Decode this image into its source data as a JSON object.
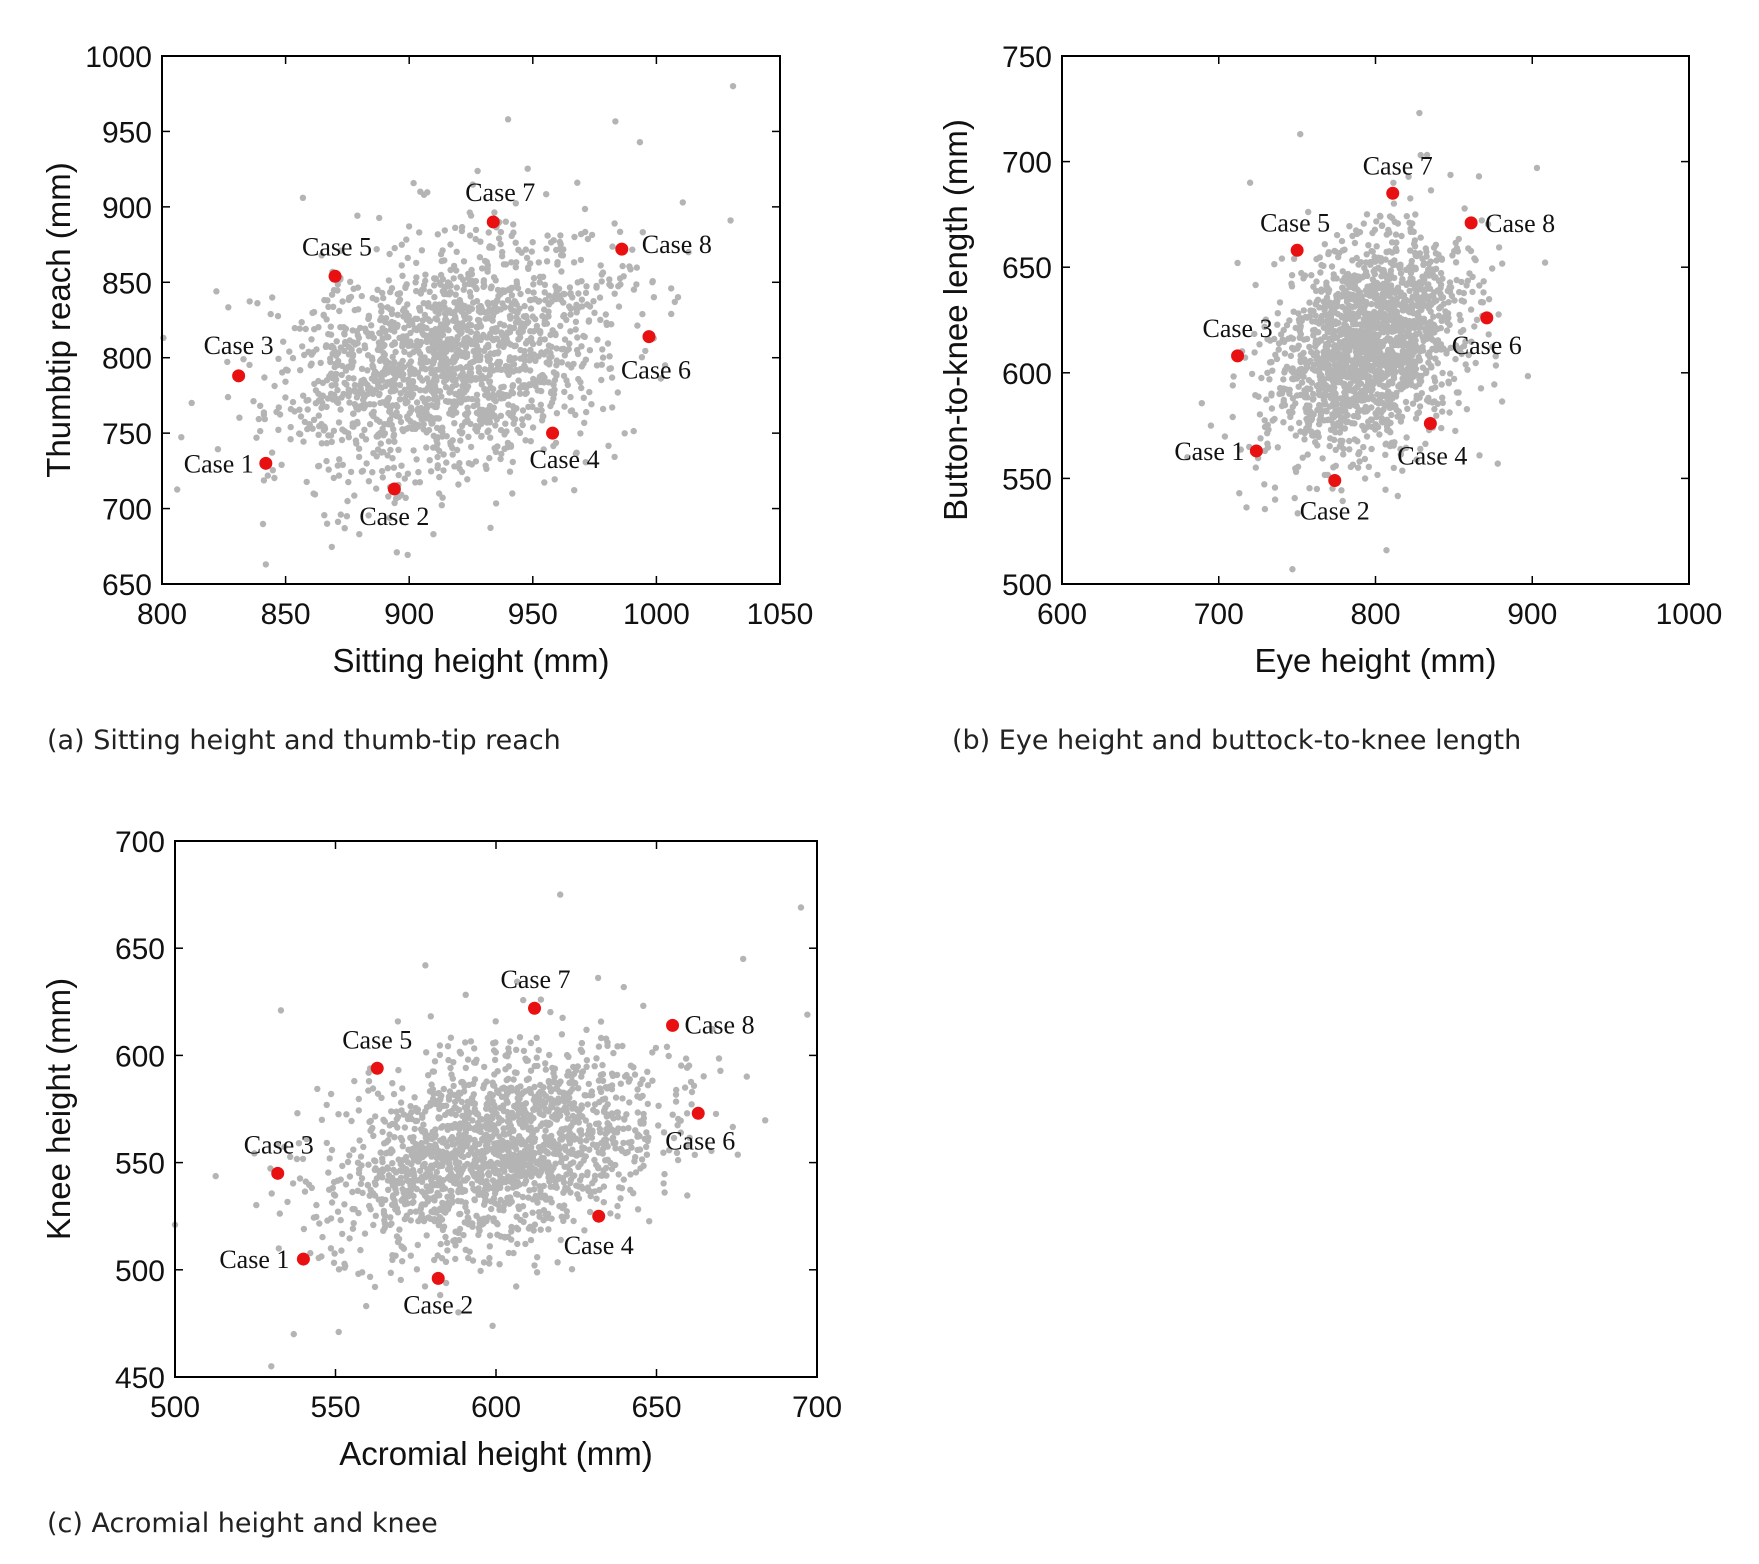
{
  "colors": {
    "background_points": "#b4b4b4",
    "case_points": "#e81010",
    "axes": "#000000"
  },
  "chart_data": [
    {
      "type": "scatter",
      "caption": "(a) Sitting height and thumb-tip reach",
      "xlabel": "Sitting height (mm)",
      "ylabel": "Thumbtip reach (mm)",
      "xlim": [
        800,
        1050
      ],
      "ylim": [
        650,
        1000
      ],
      "xticks": [
        800,
        850,
        900,
        950,
        1000,
        1050
      ],
      "yticks": [
        650,
        700,
        750,
        800,
        850,
        900,
        950,
        1000
      ],
      "population": {
        "count": 1800,
        "mean": [
          915,
          800
        ],
        "sd": [
          33,
          40
        ],
        "corr": 0.3,
        "seed": 11
      },
      "outliers": [
        [
          1031,
          980
        ],
        [
          940,
          958
        ],
        [
          842,
          663
        ],
        [
          895,
          671
        ],
        [
          906,
          908
        ],
        [
          857,
          906
        ],
        [
          822,
          844
        ],
        [
          812,
          770
        ],
        [
          968,
          916
        ],
        [
          1013,
          870
        ],
        [
          1030,
          891
        ],
        [
          1006,
          829
        ]
      ],
      "cases": [
        {
          "label": "Case 1",
          "x": 842,
          "y": 730,
          "anchor": "left",
          "dx": -12,
          "dy": 9
        },
        {
          "label": "Case 2",
          "x": 894,
          "y": 713,
          "anchor": "middle",
          "dx": 0,
          "dy": 36
        },
        {
          "label": "Case 3",
          "x": 831,
          "y": 788,
          "anchor": "middle",
          "dx": 0,
          "dy": -22
        },
        {
          "label": "Case 4",
          "x": 958,
          "y": 750,
          "anchor": "middle",
          "dx": 12,
          "dy": 35
        },
        {
          "label": "Case 5",
          "x": 870,
          "y": 854,
          "anchor": "middle",
          "dx": 2,
          "dy": -21
        },
        {
          "label": "Case 6",
          "x": 997,
          "y": 814,
          "anchor": "middle",
          "dx": 7,
          "dy": 42
        },
        {
          "label": "Case 7",
          "x": 934,
          "y": 890,
          "anchor": "middle",
          "dx": 7,
          "dy": -21
        },
        {
          "label": "Case 8",
          "x": 986,
          "y": 872,
          "anchor": "right",
          "dx": 20,
          "dy": 4
        }
      ]
    },
    {
      "type": "scatter",
      "caption": "(b) Eye height and buttock-to-knee length",
      "xlabel": "Eye height (mm)",
      "ylabel": "Button-to-knee length (mm)",
      "xlim": [
        600,
        1000
      ],
      "ylim": [
        500,
        750
      ],
      "xticks": [
        600,
        700,
        800,
        900,
        1000
      ],
      "yticks": [
        500,
        550,
        600,
        650,
        700,
        750
      ],
      "population": {
        "count": 1800,
        "mean": [
          795,
          612
        ],
        "sd": [
          30,
          26
        ],
        "corr": 0.3,
        "seed": 23
      },
      "outliers": [
        [
          828,
          723
        ],
        [
          752,
          713
        ],
        [
          903,
          697
        ],
        [
          866,
          693
        ],
        [
          720,
          690
        ],
        [
          712,
          652
        ],
        [
          747,
          507
        ],
        [
          807,
          516
        ],
        [
          680,
          560
        ],
        [
          695,
          575
        ],
        [
          878,
          557
        ]
      ],
      "cases": [
        {
          "label": "Case 1",
          "x": 724,
          "y": 563,
          "anchor": "left",
          "dx": -12,
          "dy": 9
        },
        {
          "label": "Case 2",
          "x": 774,
          "y": 549,
          "anchor": "middle",
          "dx": 0,
          "dy": 39
        },
        {
          "label": "Case 3",
          "x": 712,
          "y": 608,
          "anchor": "middle",
          "dx": 0,
          "dy": -19
        },
        {
          "label": "Case 4",
          "x": 835,
          "y": 576,
          "anchor": "middle",
          "dx": 2,
          "dy": 41
        },
        {
          "label": "Case 5",
          "x": 750,
          "y": 658,
          "anchor": "middle",
          "dx": -2,
          "dy": -19
        },
        {
          "label": "Case 6",
          "x": 871,
          "y": 626,
          "anchor": "middle",
          "dx": 0,
          "dy": 36
        },
        {
          "label": "Case 7",
          "x": 811,
          "y": 685,
          "anchor": "middle",
          "dx": 5,
          "dy": -19
        },
        {
          "label": "Case 8",
          "x": 861,
          "y": 671,
          "anchor": "right",
          "dx": 14,
          "dy": 9
        }
      ]
    },
    {
      "type": "scatter",
      "caption": "(c) Acromial height and knee",
      "xlabel": "Acromial height (mm)",
      "ylabel": "Knee height (mm)",
      "xlim": [
        500,
        700
      ],
      "ylim": [
        450,
        700
      ],
      "xticks": [
        500,
        550,
        600,
        650,
        700
      ],
      "yticks": [
        450,
        500,
        550,
        600,
        650,
        700
      ],
      "population": {
        "count": 1800,
        "mean": [
          600,
          556
        ],
        "sd": [
          26,
          24
        ],
        "corr": 0.35,
        "seed": 37
      },
      "outliers": [
        [
          620,
          675
        ],
        [
          695,
          669
        ],
        [
          677,
          645
        ],
        [
          697,
          619
        ],
        [
          530,
          455
        ],
        [
          537,
          470
        ],
        [
          551,
          471
        ],
        [
          500,
          521
        ],
        [
          533,
          621
        ],
        [
          578,
          642
        ]
      ],
      "cases": [
        {
          "label": "Case 1",
          "x": 540,
          "y": 505,
          "anchor": "left",
          "dx": -14,
          "dy": 9
        },
        {
          "label": "Case 2",
          "x": 582,
          "y": 496,
          "anchor": "middle",
          "dx": 0,
          "dy": 35
        },
        {
          "label": "Case 3",
          "x": 532,
          "y": 545,
          "anchor": "middle",
          "dx": 1,
          "dy": -20
        },
        {
          "label": "Case 4",
          "x": 632,
          "y": 525,
          "anchor": "middle",
          "dx": 0,
          "dy": 38
        },
        {
          "label": "Case 5",
          "x": 563,
          "y": 594,
          "anchor": "middle",
          "dx": 0,
          "dy": -20
        },
        {
          "label": "Case 6",
          "x": 663,
          "y": 573,
          "anchor": "middle",
          "dx": 2,
          "dy": 36
        },
        {
          "label": "Case 7",
          "x": 612,
          "y": 622,
          "anchor": "middle",
          "dx": 1,
          "dy": -20
        },
        {
          "label": "Case 8",
          "x": 655,
          "y": 614,
          "anchor": "right",
          "dx": 12,
          "dy": 8
        }
      ]
    }
  ]
}
